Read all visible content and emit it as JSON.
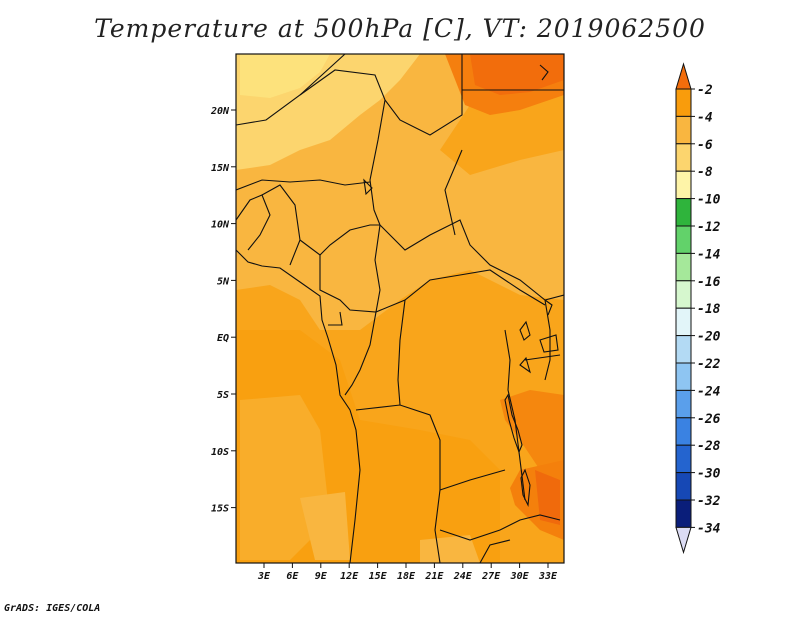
{
  "title": "Temperature at 500hPa [C], VT: 2019062500",
  "footer": "GrADS: IGES/COLA",
  "lat_labels": [
    "20N",
    "15N",
    "10N",
    "5N",
    "EQ",
    "5S",
    "10S",
    "15S"
  ],
  "lon_labels": [
    "3E",
    "6E",
    "9E",
    "12E",
    "15E",
    "18E",
    "21E",
    "24E",
    "27E",
    "30E",
    "33E"
  ],
  "colorbar": {
    "labels": [
      "-2",
      "-4",
      "-6",
      "-8",
      "-10",
      "-12",
      "-14",
      "-16",
      "-18",
      "-20",
      "-22",
      "-24",
      "-26",
      "-28",
      "-30",
      "-32",
      "-34"
    ],
    "colors": [
      "#f26d0c",
      "#f99c0c",
      "#f9b640",
      "#fcd56e",
      "#fef4a8",
      "#2fb43c",
      "#62d26a",
      "#a5e89a",
      "#d6f7ce",
      "#e2f5f9",
      "#b3daf4",
      "#8ec5f2",
      "#5a9feb",
      "#3a82e2",
      "#2464cf",
      "#1648b5",
      "#0a1e7a",
      "#dcdcf4"
    ]
  }
}
